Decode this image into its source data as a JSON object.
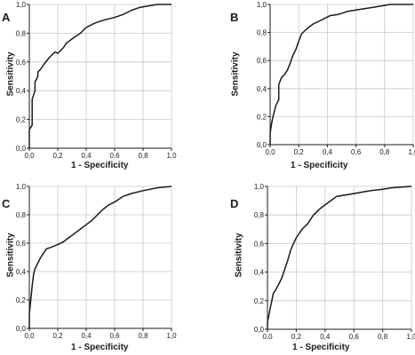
{
  "chart_data": [
    {
      "type": "line",
      "panel_label": "A",
      "xlabel": "1 - Specificity",
      "ylabel": "Sensitivity",
      "xlim": [
        0,
        1
      ],
      "ylim": [
        0,
        1
      ],
      "xticks": [
        "0,0",
        "0,2",
        "0,4",
        "0,6",
        "0,8",
        "1,0"
      ],
      "yticks": [
        "0,0",
        "0,2",
        "0,4",
        "0,6",
        "0,8",
        "1,0"
      ],
      "grid": true,
      "series": [
        {
          "x": [
            0,
            0,
            0.02,
            0.02,
            0.04,
            0.04,
            0.06,
            0.06,
            0.08,
            0.1,
            0.14,
            0.18,
            0.2,
            0.24,
            0.26,
            0.3,
            0.36,
            0.4,
            0.46,
            0.52,
            0.6,
            0.66,
            0.72,
            0.78,
            0.84,
            0.9,
            1
          ],
          "y": [
            0,
            0.13,
            0.16,
            0.34,
            0.4,
            0.46,
            0.5,
            0.53,
            0.55,
            0.58,
            0.63,
            0.67,
            0.66,
            0.7,
            0.73,
            0.76,
            0.8,
            0.84,
            0.87,
            0.89,
            0.91,
            0.93,
            0.96,
            0.98,
            0.99,
            1,
            1
          ]
        }
      ]
    },
    {
      "type": "line",
      "panel_label": "B",
      "xlabel": "1 - Specificity",
      "ylabel": "Sensitivity",
      "xlim": [
        0,
        1
      ],
      "ylim": [
        0,
        1
      ],
      "xticks": [
        "0,0",
        "0,2",
        "0,4",
        "0,6",
        "0,8",
        "1,0"
      ],
      "yticks": [
        "0,0",
        "0,2",
        "0,4",
        "0,6",
        "0,8",
        "1,0"
      ],
      "grid": true,
      "series": [
        {
          "x": [
            0,
            0,
            0.01,
            0.02,
            0.04,
            0.06,
            0.06,
            0.08,
            0.1,
            0.12,
            0.14,
            0.16,
            0.18,
            0.2,
            0.22,
            0.24,
            0.26,
            0.3,
            0.34,
            0.38,
            0.42,
            0.48,
            0.54,
            0.6,
            0.66,
            0.72,
            0.78,
            0.84,
            0.9,
            1
          ],
          "y": [
            0,
            0.08,
            0.15,
            0.2,
            0.28,
            0.32,
            0.43,
            0.48,
            0.5,
            0.53,
            0.58,
            0.64,
            0.68,
            0.74,
            0.79,
            0.81,
            0.83,
            0.86,
            0.88,
            0.9,
            0.92,
            0.93,
            0.95,
            0.96,
            0.97,
            0.98,
            0.99,
            1,
            1,
            1
          ]
        }
      ]
    },
    {
      "type": "line",
      "panel_label": "C",
      "xlabel": "1 - Specificity",
      "ylabel": "Sensitivity",
      "xlim": [
        0,
        1
      ],
      "ylim": [
        0,
        1
      ],
      "xticks": [
        "0,0",
        "0,2",
        "0,4",
        "0,6",
        "0,8",
        "1,0"
      ],
      "yticks": [
        "0,0",
        "0,2",
        "0,4",
        "0,6",
        "0,8",
        "1,0"
      ],
      "grid": true,
      "series": [
        {
          "x": [
            0,
            0,
            0.01,
            0.02,
            0.03,
            0.04,
            0.06,
            0.08,
            0.1,
            0.12,
            0.15,
            0.2,
            0.24,
            0.28,
            0.32,
            0.36,
            0.4,
            0.44,
            0.48,
            0.52,
            0.56,
            0.6,
            0.66,
            0.72,
            0.8,
            0.9,
            1
          ],
          "y": [
            0,
            0.1,
            0.2,
            0.3,
            0.38,
            0.42,
            0.46,
            0.5,
            0.53,
            0.56,
            0.57,
            0.59,
            0.61,
            0.64,
            0.67,
            0.7,
            0.73,
            0.76,
            0.8,
            0.84,
            0.87,
            0.89,
            0.93,
            0.95,
            0.97,
            0.99,
            1
          ]
        }
      ]
    },
    {
      "type": "line",
      "panel_label": "D",
      "xlabel": "1 - Specificity",
      "ylabel": "Sensitivity",
      "xlim": [
        0,
        1
      ],
      "ylim": [
        0,
        1
      ],
      "xticks": [
        "0,0",
        "0,2",
        "0,4",
        "0,6",
        "0,8",
        "1,0"
      ],
      "yticks": [
        "0,0",
        "0,2",
        "0,4",
        "0,6",
        "0,8",
        "1,0"
      ],
      "grid": true,
      "series": [
        {
          "x": [
            0,
            0,
            0.01,
            0.02,
            0.03,
            0.04,
            0.06,
            0.08,
            0.1,
            0.12,
            0.14,
            0.16,
            0.18,
            0.2,
            0.22,
            0.24,
            0.26,
            0.28,
            0.3,
            0.32,
            0.36,
            0.4,
            0.44,
            0.48,
            0.54,
            0.6,
            0.66,
            0.72,
            0.8,
            0.86,
            1
          ],
          "y": [
            0,
            0.05,
            0.1,
            0.15,
            0.2,
            0.25,
            0.28,
            0.32,
            0.36,
            0.42,
            0.48,
            0.55,
            0.6,
            0.64,
            0.67,
            0.7,
            0.72,
            0.74,
            0.77,
            0.8,
            0.84,
            0.87,
            0.9,
            0.93,
            0.94,
            0.95,
            0.96,
            0.97,
            0.98,
            0.99,
            1
          ]
        }
      ]
    }
  ],
  "colors": {
    "curve": "#1a1a1a",
    "grid": "#c8c8c8",
    "axis": "#1a1a1a",
    "background": "#ffffff"
  }
}
